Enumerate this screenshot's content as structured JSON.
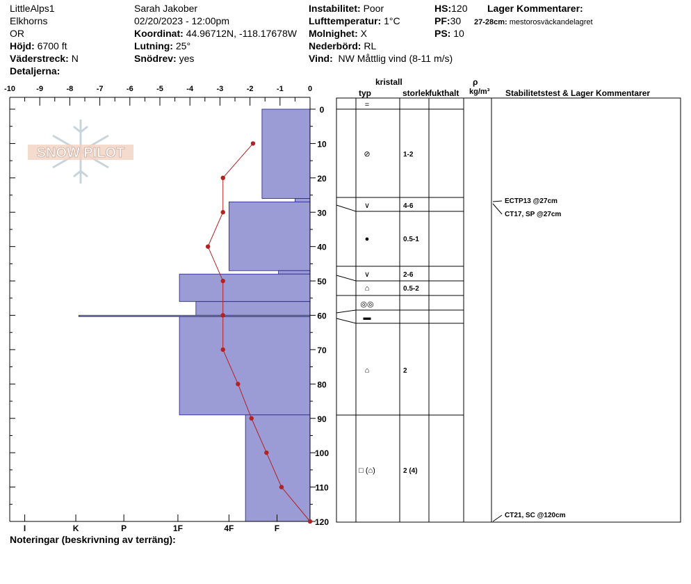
{
  "header": {
    "location": "LittleAlps1",
    "range": "Elkhorns",
    "state": "OR",
    "elevation_label": "Höjd:",
    "elevation": "6700 ft",
    "aspect_label": "Väderstreck:",
    "aspect": "N",
    "details_label": "Detaljerna:",
    "observer": "Sarah Jakober",
    "datetime": "02/20/2023 - 12:00pm",
    "coord_label": "Koordinat:",
    "coord": "44.96712N, -118.17678W",
    "slope_label": "Lutning:",
    "slope": "25°",
    "drift_label": "Snödrev:",
    "drift": "yes",
    "instability_label": "Instabilitet:",
    "instability": "Poor",
    "airtemp_label": "Lufttemperatur:",
    "airtemp": "1°C",
    "sky_label": "Molnighet:",
    "sky": "X",
    "precip_label": "Nederbörd:",
    "precip": "RL",
    "wind_label": "Vind:",
    "wind": "NW Måttlig vind (8-11 m/s)",
    "hs_label": "HS:",
    "hs": "120",
    "pf_label": "PF:",
    "pf": "30",
    "ps_label": "PS:",
    "ps": "10",
    "layer_comments_label": "Lager Kommentarer:",
    "layer_comment_depth": "27-28cm:",
    "layer_comment_text": "mestorosväckandelagret"
  },
  "logo_text": "SNOW PILOT",
  "notes_label": "Noteringar (beskrivning av terräng):",
  "table": {
    "col_type": "typ",
    "col_crystal_top": "kristall",
    "col_crystal_bottom": "storlek",
    "col_moisture": "fukthalt",
    "col_density_top": "ρ",
    "col_density_bottom": "kg/m³",
    "col_comments": "Stabilitetstest & Lager Kommentarer"
  },
  "chart_data": {
    "type": "bar",
    "temp_axis": {
      "label": "",
      "ticks": [
        "-10",
        "-9",
        "-8",
        "-7",
        "-6",
        "-5",
        "-4",
        "-3",
        "-2",
        "-1",
        "0"
      ],
      "range": [
        -10,
        0
      ]
    },
    "depth_axis": {
      "label": "",
      "ticks": [
        "0",
        "10",
        "20",
        "30",
        "40",
        "50",
        "60",
        "70",
        "80",
        "90",
        "100",
        "110",
        "120"
      ],
      "range": [
        0,
        120
      ]
    },
    "hardness_axis": {
      "label": "",
      "ticks": [
        "I",
        "K",
        "P",
        "1F",
        "4F",
        "F"
      ]
    },
    "hardness_profile": [
      {
        "top": 0,
        "bottom": 26,
        "hardness": -1.6
      },
      {
        "top": 26,
        "bottom": 27,
        "hardness": -0.5
      },
      {
        "top": 27,
        "bottom": 47,
        "hardness": -2.7
      },
      {
        "top": 47,
        "bottom": 48,
        "hardness": -1.05
      },
      {
        "top": 48,
        "bottom": 56,
        "hardness": -4.35
      },
      {
        "top": 56,
        "bottom": 60,
        "hardness": -3.8
      },
      {
        "top": 60,
        "bottom": 60.4,
        "hardness": -7.7
      },
      {
        "top": 60.4,
        "bottom": 89,
        "hardness": -4.35
      },
      {
        "top": 89,
        "bottom": 120,
        "hardness": -2.15
      }
    ],
    "temperature_profile": [
      {
        "depth": 10,
        "temp": -1.9
      },
      {
        "depth": 20,
        "temp": -2.9
      },
      {
        "depth": 30,
        "temp": -2.9
      },
      {
        "depth": 40,
        "temp": -3.4
      },
      {
        "depth": 50,
        "temp": -2.9
      },
      {
        "depth": 60,
        "temp": -2.9
      },
      {
        "depth": 70,
        "temp": -2.9
      },
      {
        "depth": 80,
        "temp": -2.4
      },
      {
        "depth": 90,
        "temp": -1.95
      },
      {
        "depth": 100,
        "temp": -1.45
      },
      {
        "depth": 110,
        "temp": -0.95
      },
      {
        "depth": 120,
        "temp": 0
      }
    ],
    "layers": [
      {
        "top": 0,
        "bottom": 0,
        "symbol": "=",
        "size": ""
      },
      {
        "top": 0,
        "bottom": 26,
        "symbol": "⊘",
        "size": "1-2"
      },
      {
        "top": 26,
        "bottom": 30,
        "symbol": "∨",
        "size": "4-6"
      },
      {
        "top": 30,
        "bottom": 46,
        "symbol": "●",
        "size": "0.5-1"
      },
      {
        "top": 46,
        "bottom": 50,
        "symbol": "∨",
        "size": "2-6"
      },
      {
        "top": 50,
        "bottom": 54,
        "symbol": "⌂",
        "size": "0.5-2"
      },
      {
        "top": 54,
        "bottom": 58,
        "symbol": "◎◎",
        "size": ""
      },
      {
        "top": 58,
        "bottom": 62,
        "symbol": "▬",
        "size": ""
      },
      {
        "top": 62,
        "bottom": 89,
        "symbol": "⌂",
        "size": "2"
      },
      {
        "top": 89,
        "bottom": 120,
        "symbol": "□ (⌂)",
        "size": "2 (4)"
      }
    ],
    "tests": [
      {
        "depth": 27,
        "text": "ECTP13 @27cm"
      },
      {
        "depth": 27,
        "text": "CT17, SP @27cm"
      },
      {
        "depth": 120,
        "text": "CT21, SC @120cm"
      }
    ]
  },
  "colors": {
    "bar": "#9b9bd6",
    "temp": "#b22222",
    "line": "#000000"
  }
}
